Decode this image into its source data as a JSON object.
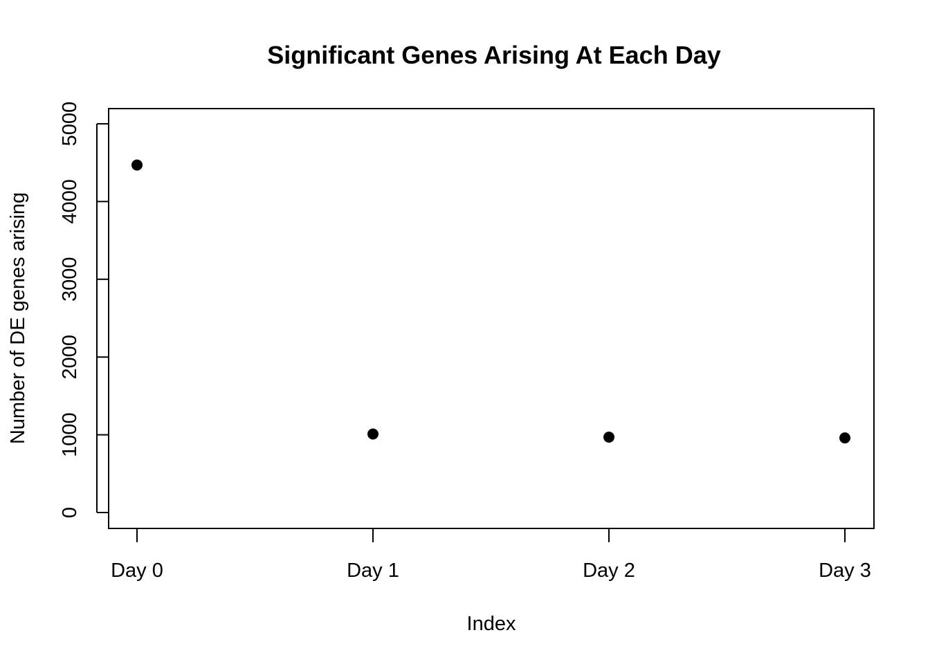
{
  "chart_data": {
    "type": "scatter",
    "title": "Significant Genes Arising At Each Day",
    "xlabel": "Index",
    "ylabel": "Number of DE genes arising",
    "categories": [
      "Day 0",
      "Day 1",
      "Day 2",
      "Day 3"
    ],
    "x": [
      1,
      2,
      3,
      4
    ],
    "values": [
      4470,
      1010,
      970,
      960
    ],
    "ylim": [
      0,
      5000
    ],
    "yticks": [
      "0",
      "1000",
      "2000",
      "3000",
      "4000",
      "5000"
    ],
    "ytick_values": [
      0,
      1000,
      2000,
      3000,
      4000,
      5000
    ],
    "grid": false,
    "legend": "none",
    "point_color": "#000000"
  }
}
